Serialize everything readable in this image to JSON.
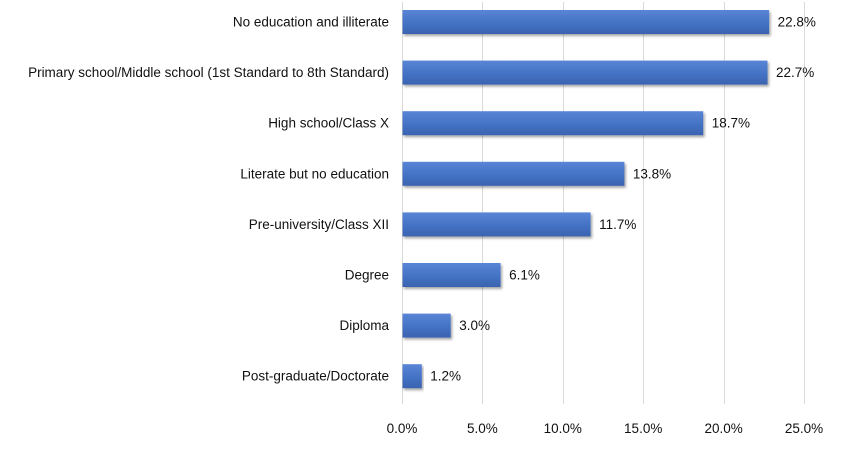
{
  "chart_data": {
    "type": "bar",
    "orientation": "horizontal",
    "categories": [
      "No education and illiterate",
      "Primary school/Middle school (1st Standard to 8th Standard)",
      "High school/Class X",
      "Literate but no education",
      "Pre-university/Class XII",
      "Degree",
      "Diploma",
      "Post-graduate/Doctorate"
    ],
    "values": [
      22.8,
      22.7,
      18.7,
      13.8,
      11.7,
      6.1,
      3.0,
      1.2
    ],
    "value_labels": [
      "22.8%",
      "22.7%",
      "18.7%",
      "13.8%",
      "11.7%",
      "6.1%",
      "3.0%",
      "1.2%"
    ],
    "x_ticks": [
      0,
      5,
      10,
      15,
      20,
      25
    ],
    "x_tick_labels": [
      "0.0%",
      "5.0%",
      "10.0%",
      "15.0%",
      "20.0%",
      "25.0%"
    ],
    "xlim": [
      0,
      25
    ],
    "title": "",
    "xlabel": "",
    "ylabel": "",
    "grid": "vertical",
    "legend": "none",
    "bar_color": "#4472c4"
  }
}
